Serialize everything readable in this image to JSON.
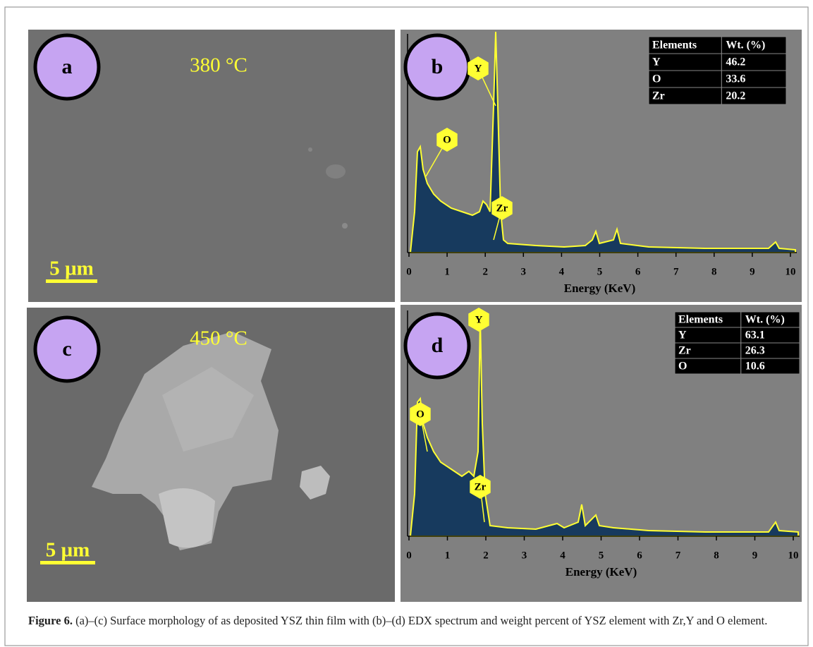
{
  "panels": [
    {
      "label": "a",
      "temperature": "380 °C",
      "scale_bar": "5 µm"
    },
    {
      "label": "b",
      "peaks": [
        "Y",
        "O",
        "Zr"
      ],
      "table": {
        "header": [
          "Elements",
          "Wt. (%)"
        ],
        "rows": [
          [
            "Y",
            46.2
          ],
          [
            "O",
            33.6
          ],
          [
            "Zr",
            20.2
          ]
        ]
      },
      "xticks": [
        0,
        1,
        2,
        3,
        4,
        5,
        6,
        7,
        8,
        9,
        10
      ],
      "xlabel": "Energy (KeV)"
    },
    {
      "label": "c",
      "temperature": "450 °C",
      "scale_bar": "5 µm"
    },
    {
      "label": "d",
      "peaks": [
        "Y",
        "O",
        "Zr"
      ],
      "table": {
        "header": [
          "Elements",
          "Wt. (%)"
        ],
        "rows": [
          [
            "Y",
            63.1
          ],
          [
            "Zr",
            26.3
          ],
          [
            "O",
            10.6
          ]
        ]
      },
      "xticks": [
        0,
        1,
        2,
        3,
        4,
        5,
        6,
        7,
        8,
        9,
        10
      ],
      "xlabel": "Energy (KeV)"
    }
  ],
  "caption": {
    "label": "Figure 6.",
    "text": "(a)–(c) Surface morphology of as deposited YSZ thin film with (b)–(d) EDX spectrum and weight percent of YSZ element with Zr,Y and O element."
  }
}
